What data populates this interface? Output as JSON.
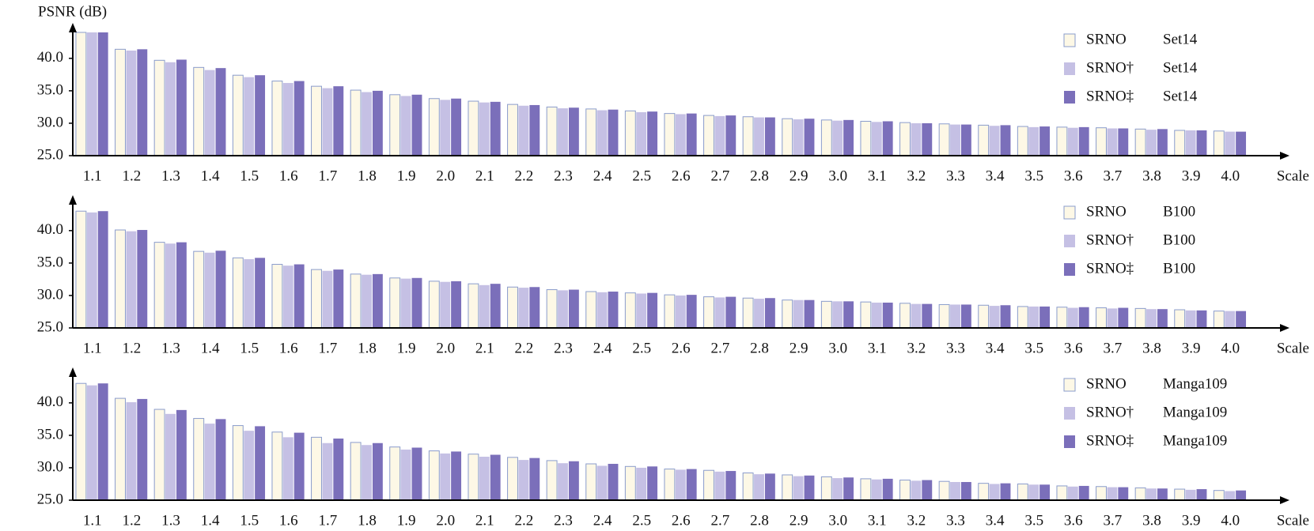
{
  "chart_data": [
    {
      "type": "bar",
      "ylabel": "PSNR (dB)",
      "xlabel": "Scale",
      "dataset": "Set14",
      "categories": [
        "1.1",
        "1.2",
        "1.3",
        "1.4",
        "1.5",
        "1.6",
        "1.7",
        "1.8",
        "1.9",
        "2.0",
        "2.1",
        "2.2",
        "2.3",
        "2.4",
        "2.5",
        "2.6",
        "2.7",
        "2.8",
        "2.9",
        "3.0",
        "3.1",
        "3.2",
        "3.3",
        "3.4",
        "3.5",
        "3.6",
        "3.7",
        "3.8",
        "3.9",
        "4.0"
      ],
      "series": [
        {
          "name": "SRNO",
          "color": "#fdf8e6",
          "values": [
            44.0,
            41.4,
            39.7,
            38.6,
            37.4,
            36.5,
            35.7,
            35.1,
            34.4,
            33.8,
            33.4,
            32.9,
            32.5,
            32.2,
            31.9,
            31.5,
            31.2,
            31.0,
            30.7,
            30.5,
            30.3,
            30.1,
            29.9,
            29.7,
            29.5,
            29.4,
            29.3,
            29.1,
            28.9,
            28.8
          ]
        },
        {
          "name": "SRNO†",
          "color": "#c5c0e4",
          "values": [
            44.0,
            41.2,
            39.4,
            38.2,
            37.1,
            36.2,
            35.4,
            34.8,
            34.2,
            33.6,
            33.2,
            32.7,
            32.3,
            32.0,
            31.7,
            31.4,
            31.1,
            30.9,
            30.6,
            30.4,
            30.2,
            30.0,
            29.8,
            29.6,
            29.4,
            29.3,
            29.2,
            29.0,
            28.9,
            28.7
          ]
        },
        {
          "name": "SRNO‡",
          "color": "#7b6fba",
          "values": [
            44.0,
            41.4,
            39.8,
            38.5,
            37.4,
            36.5,
            35.7,
            35.0,
            34.4,
            33.8,
            33.3,
            32.8,
            32.4,
            32.1,
            31.8,
            31.5,
            31.2,
            30.9,
            30.7,
            30.5,
            30.3,
            30.0,
            29.8,
            29.7,
            29.5,
            29.4,
            29.2,
            29.1,
            28.9,
            28.7
          ]
        }
      ],
      "ylim": [
        25,
        44
      ],
      "yticks": [
        {
          "value": 25,
          "label": "25.0"
        },
        {
          "value": 30,
          "label": "30.0"
        },
        {
          "value": 35,
          "label": "35.0"
        },
        {
          "value": 40,
          "label": "40.0"
        }
      ],
      "legend": "upper right"
    },
    {
      "type": "bar",
      "xlabel": "Scale",
      "dataset": "B100",
      "categories": [
        "1.1",
        "1.2",
        "1.3",
        "1.4",
        "1.5",
        "1.6",
        "1.7",
        "1.8",
        "1.9",
        "2.0",
        "2.1",
        "2.2",
        "2.3",
        "2.4",
        "2.5",
        "2.6",
        "2.7",
        "2.8",
        "2.9",
        "3.0",
        "3.1",
        "3.2",
        "3.3",
        "3.4",
        "3.5",
        "3.6",
        "3.7",
        "3.8",
        "3.9",
        "4.0"
      ],
      "series": [
        {
          "name": "SRNO",
          "color": "#fdf8e6",
          "values": [
            43.0,
            40.1,
            38.2,
            36.8,
            35.8,
            34.8,
            34.0,
            33.3,
            32.7,
            32.2,
            31.8,
            31.3,
            30.9,
            30.6,
            30.4,
            30.1,
            29.8,
            29.6,
            29.3,
            29.1,
            29.0,
            28.8,
            28.6,
            28.5,
            28.3,
            28.2,
            28.1,
            28.0,
            27.8,
            27.6
          ]
        },
        {
          "name": "SRNO†",
          "color": "#c5c0e4",
          "values": [
            42.8,
            39.9,
            38.0,
            36.6,
            35.6,
            34.6,
            33.8,
            33.2,
            32.6,
            32.1,
            31.6,
            31.2,
            30.8,
            30.5,
            30.3,
            30.0,
            29.7,
            29.5,
            29.3,
            29.1,
            28.9,
            28.7,
            28.6,
            28.4,
            28.3,
            28.1,
            28.0,
            27.9,
            27.7,
            27.6
          ]
        },
        {
          "name": "SRNO‡",
          "color": "#7b6fba",
          "values": [
            43.0,
            40.1,
            38.2,
            36.9,
            35.8,
            34.8,
            34.0,
            33.3,
            32.7,
            32.2,
            31.8,
            31.3,
            30.9,
            30.6,
            30.4,
            30.1,
            29.8,
            29.6,
            29.3,
            29.1,
            28.9,
            28.7,
            28.6,
            28.5,
            28.3,
            28.2,
            28.1,
            27.9,
            27.7,
            27.6
          ]
        }
      ],
      "ylim": [
        25,
        44
      ],
      "yticks": [
        {
          "value": 25,
          "label": "25.0"
        },
        {
          "value": 30,
          "label": "30.0"
        },
        {
          "value": 35,
          "label": "35.0"
        },
        {
          "value": 40,
          "label": "40.0"
        }
      ],
      "legend": "upper right"
    },
    {
      "type": "bar",
      "xlabel": "Scale",
      "dataset": "Manga109",
      "categories": [
        "1.1",
        "1.2",
        "1.3",
        "1.4",
        "1.5",
        "1.6",
        "1.7",
        "1.8",
        "1.9",
        "2.0",
        "2.1",
        "2.2",
        "2.3",
        "2.4",
        "2.5",
        "2.6",
        "2.7",
        "2.8",
        "2.9",
        "3.0",
        "3.1",
        "3.2",
        "3.3",
        "3.4",
        "3.5",
        "3.6",
        "3.7",
        "3.8",
        "3.9",
        "4.0"
      ],
      "series": [
        {
          "name": "SRNO",
          "color": "#fdf8e6",
          "values": [
            43.0,
            40.7,
            39.0,
            37.6,
            36.5,
            35.5,
            34.7,
            33.9,
            33.2,
            32.6,
            32.1,
            31.6,
            31.1,
            30.6,
            30.2,
            29.8,
            29.6,
            29.2,
            28.9,
            28.6,
            28.3,
            28.1,
            27.9,
            27.6,
            27.5,
            27.2,
            27.1,
            26.9,
            26.7,
            26.5
          ]
        },
        {
          "name": "SRNO†",
          "color": "#c5c0e4",
          "values": [
            42.7,
            40.1,
            38.3,
            36.8,
            35.7,
            34.7,
            33.8,
            33.5,
            32.8,
            32.2,
            31.7,
            31.2,
            30.7,
            30.3,
            30.0,
            29.7,
            29.4,
            29.0,
            28.7,
            28.4,
            28.2,
            28.0,
            27.8,
            27.5,
            27.4,
            27.1,
            27.0,
            26.8,
            26.6,
            26.4
          ]
        },
        {
          "name": "SRNO‡",
          "color": "#7b6fba",
          "values": [
            43.0,
            40.6,
            38.9,
            37.5,
            36.4,
            35.4,
            34.5,
            33.8,
            33.1,
            32.5,
            32.0,
            31.5,
            31.0,
            30.6,
            30.2,
            29.8,
            29.5,
            29.1,
            28.8,
            28.5,
            28.3,
            28.1,
            27.8,
            27.6,
            27.4,
            27.2,
            27.0,
            26.8,
            26.7,
            26.5
          ]
        }
      ],
      "ylim": [
        25,
        44
      ],
      "yticks": [
        {
          "value": 25,
          "label": "25.0"
        },
        {
          "value": 30,
          "label": "30.0"
        },
        {
          "value": 35,
          "label": "35.0"
        },
        {
          "value": 40,
          "label": "40.0"
        }
      ],
      "legend": "upper right"
    }
  ]
}
